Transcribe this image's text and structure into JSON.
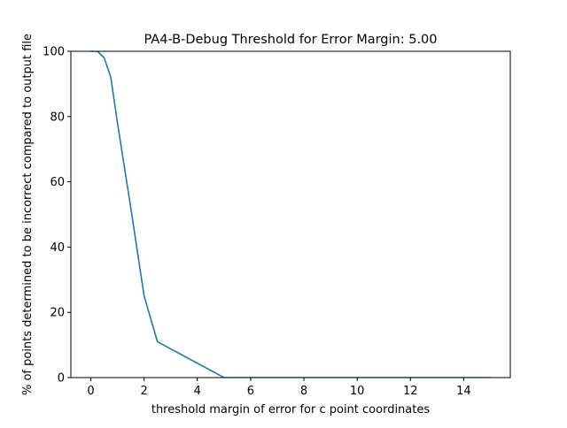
{
  "chart_data": {
    "type": "line",
    "title": "PA4-B-Debug Threshold for Error Margin: 5.00",
    "xlabel": "threshold margin of error for c point coordinates",
    "ylabel": "% of points determined to be incorrect compared to output file",
    "xlim": [
      -0.75,
      15.75
    ],
    "ylim": [
      0,
      100
    ],
    "xticks": [
      0,
      2,
      4,
      6,
      8,
      10,
      12,
      14
    ],
    "yticks": [
      0,
      20,
      40,
      60,
      80,
      100
    ],
    "grid": false,
    "series": [
      {
        "color": "#1f77b4",
        "x": [
          0.0,
          0.25,
          0.5,
          0.75,
          1.0,
          1.5,
          2.0,
          2.5,
          5.0,
          7.5,
          10.0,
          12.5,
          15.0
        ],
        "y": [
          100,
          100,
          98,
          92,
          78,
          52,
          25,
          11,
          0,
          0,
          0,
          0,
          0
        ]
      }
    ]
  }
}
